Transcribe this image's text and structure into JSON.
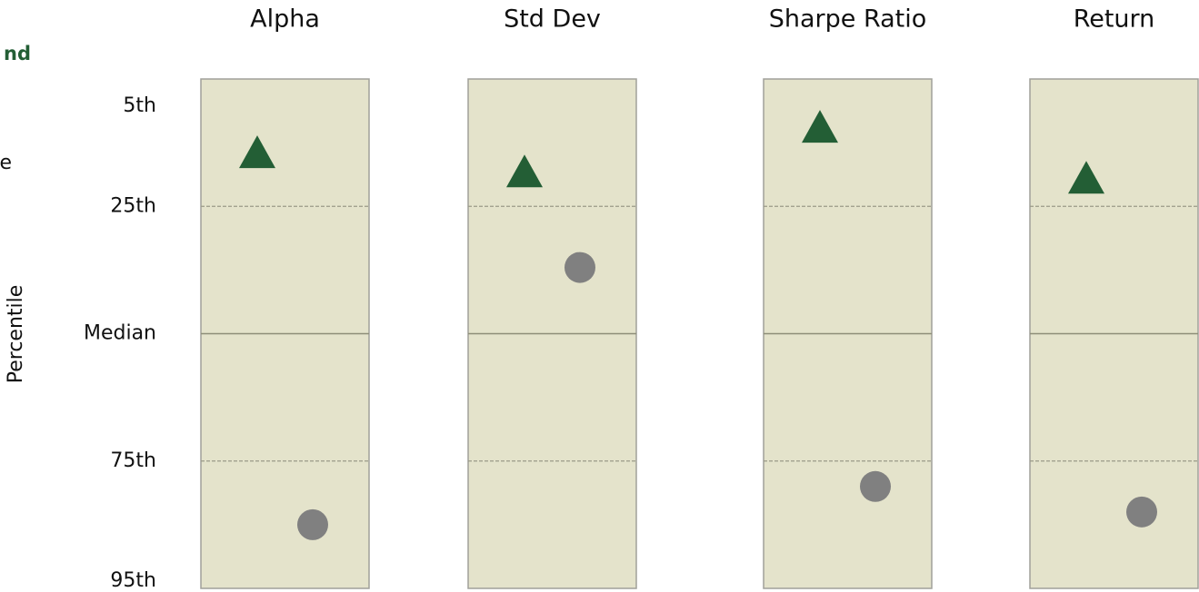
{
  "chart_data": {
    "type": "percentile",
    "ylabel": "Percentile",
    "categories": [
      "Alpha",
      "Std Dev",
      "Sharpe Ratio",
      "Return"
    ],
    "series": [
      {
        "name": "nd",
        "color": "#235e35",
        "marker": "triangle",
        "values": [
          17,
          20,
          13,
          21
        ]
      },
      {
        "name": "e",
        "color": "#808080",
        "marker": "circle",
        "values": [
          85,
          37,
          79,
          83
        ]
      }
    ],
    "ylim": [
      5,
      95
    ],
    "yticks": [
      {
        "value": 5,
        "label": "5th"
      },
      {
        "value": 25,
        "label": "25th"
      },
      {
        "value": 50,
        "label": "Median"
      },
      {
        "value": 75,
        "label": "75th"
      },
      {
        "value": 95,
        "label": "95th"
      }
    ],
    "grid": true
  }
}
